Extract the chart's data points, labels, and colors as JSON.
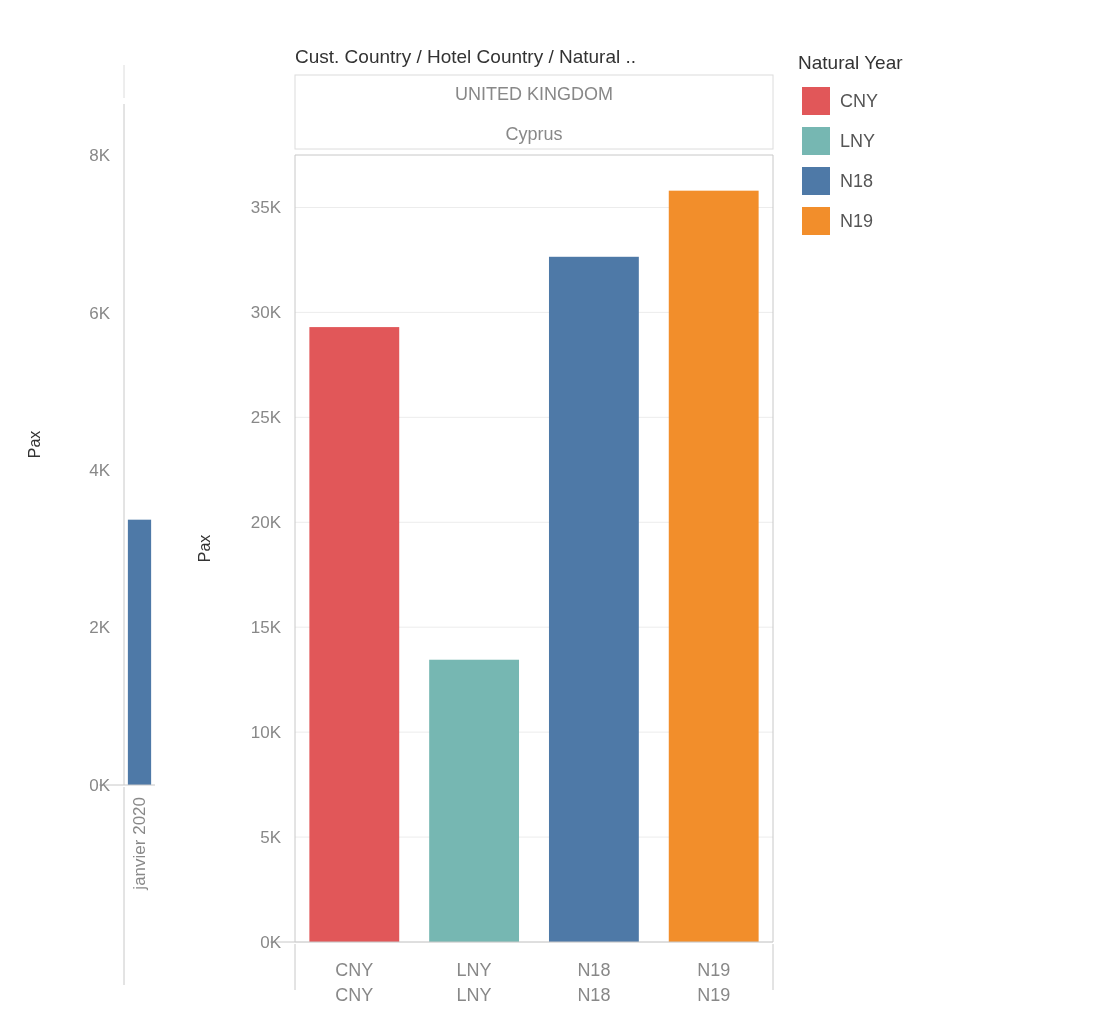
{
  "chart_data": [
    {
      "type": "bar",
      "ylabel": "Pax",
      "categories": [
        "janvier 2020"
      ],
      "series": [
        {
          "color": "#4e79a7",
          "values": [
            3370
          ]
        }
      ],
      "ylim": [
        0,
        8650
      ],
      "yticks": [
        {
          "value": 0,
          "label": "0K"
        },
        {
          "value": 2000,
          "label": "2K"
        },
        {
          "value": 4000,
          "label": "4K"
        },
        {
          "value": 6000,
          "label": "6K"
        },
        {
          "value": 8000,
          "label": "8K"
        }
      ]
    },
    {
      "type": "bar",
      "title": "Cust. Country / Hotel Country / Natural ..",
      "ylabel": "Pax",
      "legend_title": "Natural Year",
      "legend": "right",
      "grid": "y",
      "categories": [
        "CNY",
        "LNY",
        "N18",
        "N19"
      ],
      "series": [
        {
          "name": "CNY",
          "color": "#e15759",
          "values": [
            29300,
            null,
            null,
            null
          ]
        },
        {
          "name": "LNY",
          "color": "#76b7b2",
          "values": [
            null,
            13450,
            null,
            null
          ]
        },
        {
          "name": "N18",
          "color": "#4e79a7",
          "values": [
            null,
            null,
            32650,
            null
          ]
        },
        {
          "name": "N19",
          "color": "#f28e2b",
          "values": [
            null,
            null,
            null,
            35800
          ]
        }
      ],
      "ylim": [
        0,
        37500
      ],
      "yticks": [
        {
          "value": 0,
          "label": "0K"
        },
        {
          "value": 5000,
          "label": "5K"
        },
        {
          "value": 10000,
          "label": "10K"
        },
        {
          "value": 15000,
          "label": "15K"
        },
        {
          "value": 20000,
          "label": "20K"
        },
        {
          "value": 25000,
          "label": "25K"
        },
        {
          "value": 30000,
          "label": "30K"
        },
        {
          "value": 35000,
          "label": "35K"
        }
      ],
      "annotations": [
        "UNITED KINGDOM",
        "Cyprus",
        "CNY",
        "LNY",
        "N18",
        "N19"
      ]
    }
  ]
}
